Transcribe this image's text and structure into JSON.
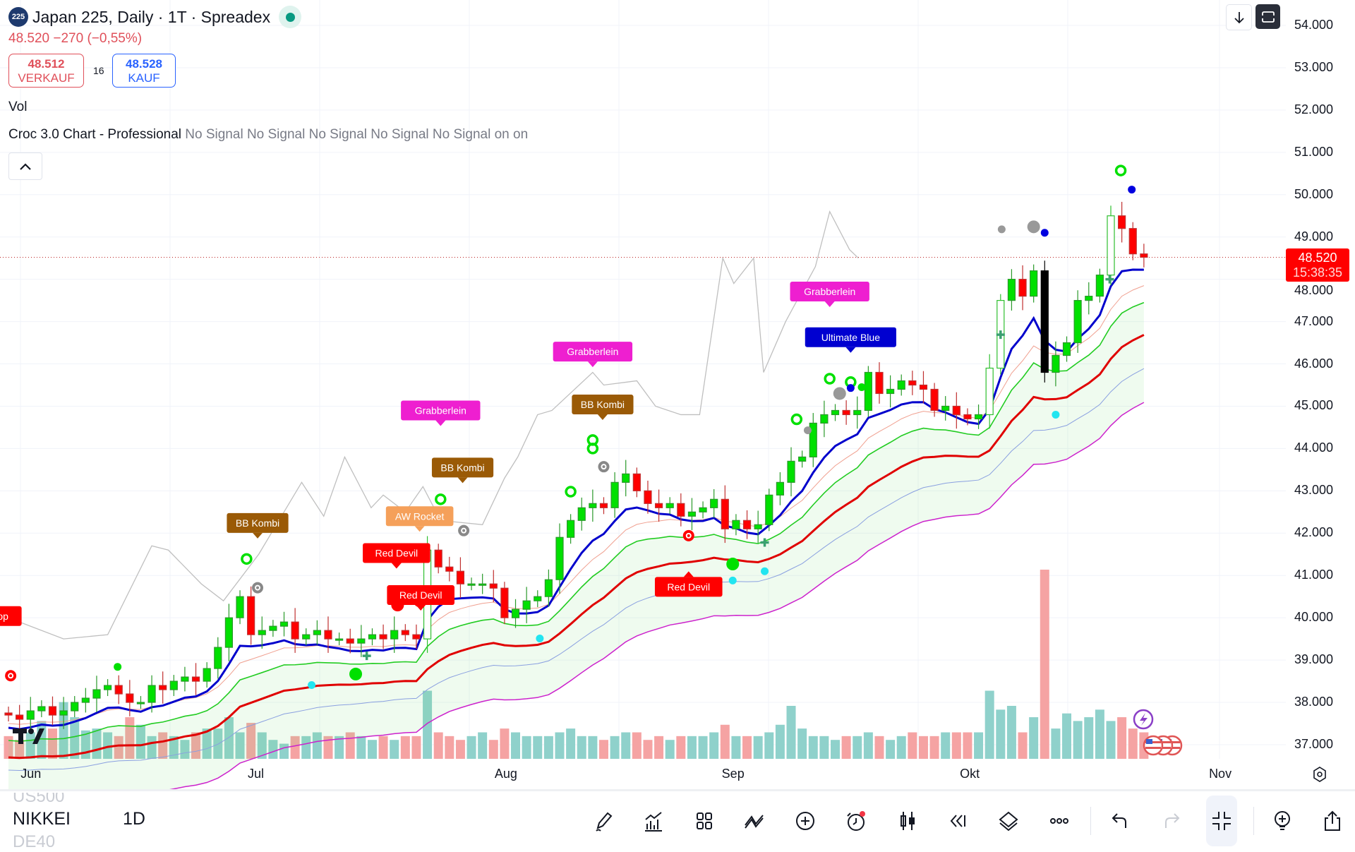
{
  "header": {
    "symbol_badge": "225",
    "title": "Japan 225, Daily · 1T · Spreadex",
    "change": "48.520  −270 (−0,55%)",
    "sell_price": "48.512",
    "sell_label": "VERKAUF",
    "spread": "16",
    "buy_price": "48.528",
    "buy_label": "KAUF",
    "vol_label": "Vol",
    "indicator_name": "Croc 3.0 Chart - Professional",
    "indicator_values": "No Signal No Signal No Signal No Signal No Signal on on"
  },
  "price_tag": {
    "price": "48.520",
    "countdown": "15:38:35"
  },
  "colors": {
    "up": "#00e000",
    "down": "#ff0000",
    "blue_line": "#0000cc",
    "red_line": "#e00000",
    "green_line": "#22cc22",
    "magenta_line": "#cc22cc",
    "vol_up": "#8fd1cb",
    "vol_down": "#f5a3a3",
    "accent": "#2962ff"
  },
  "chart_data": {
    "type": "candlestick",
    "title": "Japan 225, Daily",
    "price_axis": [
      "54.000",
      "53.000",
      "52.000",
      "51.000",
      "50.000",
      "49.000",
      "48.000",
      "47.000",
      "46.000",
      "45.000",
      "44.000",
      "43.000",
      "42.000",
      "41.000",
      "40.000",
      "39.000",
      "38.000",
      "37.000"
    ],
    "ylim": [
      36.7,
      54.2
    ],
    "x_labels": [
      {
        "label": "Jun",
        "i": 2
      },
      {
        "label": "Jul",
        "i": 22.6
      },
      {
        "label": "Aug",
        "i": 45
      },
      {
        "label": "Sep",
        "i": 65.6
      },
      {
        "label": "Okt",
        "i": 87.2
      },
      {
        "label": "Nov",
        "i": 109.8
      }
    ],
    "close": [
      37.7,
      37.6,
      37.8,
      37.9,
      37.7,
      37.8,
      38.0,
      38.1,
      38.3,
      38.4,
      38.2,
      38.0,
      38.0,
      38.4,
      38.3,
      38.5,
      38.6,
      38.5,
      38.8,
      39.3,
      40.0,
      40.5,
      39.6,
      39.7,
      39.8,
      39.9,
      39.5,
      39.6,
      39.7,
      39.5,
      39.5,
      39.4,
      39.5,
      39.6,
      39.5,
      39.7,
      39.6,
      39.5,
      41.6,
      41.2,
      41.1,
      40.8,
      40.8,
      40.8,
      40.7,
      40.0,
      40.2,
      40.4,
      40.5,
      40.9,
      41.9,
      42.3,
      42.6,
      42.7,
      42.6,
      43.2,
      43.4,
      43.0,
      42.7,
      42.6,
      42.7,
      42.4,
      42.5,
      42.6,
      42.8,
      42.1,
      42.3,
      42.1,
      42.2,
      42.9,
      43.2,
      43.7,
      43.8,
      44.6,
      44.8,
      44.9,
      44.8,
      44.9,
      45.8,
      45.3,
      45.4,
      45.6,
      45.5,
      45.4,
      44.9,
      45.0,
      44.8,
      44.7,
      44.8,
      45.9,
      47.5,
      48.0,
      47.6,
      48.2,
      45.8,
      46.2,
      46.5,
      47.5,
      47.6,
      48.1,
      49.5,
      49.2,
      48.6,
      48.52
    ],
    "volume": [
      12,
      10,
      14,
      20,
      16,
      30,
      22,
      15,
      16,
      14,
      12,
      22,
      18,
      12,
      14,
      12,
      10,
      14,
      16,
      16,
      22,
      14,
      19,
      14,
      10,
      8,
      12,
      12,
      14,
      12,
      12,
      14,
      12,
      10,
      12,
      10,
      12,
      12,
      36,
      14,
      12,
      10,
      12,
      14,
      10,
      16,
      14,
      12,
      12,
      12,
      14,
      16,
      12,
      12,
      10,
      12,
      14,
      14,
      10,
      12,
      10,
      12,
      12,
      12,
      14,
      18,
      12,
      12,
      12,
      14,
      18,
      28,
      16,
      12,
      12,
      10,
      12,
      12,
      14,
      12,
      10,
      12,
      14,
      12,
      12,
      14,
      14,
      14,
      14,
      36,
      26,
      28,
      14,
      22,
      100,
      16,
      24,
      20,
      22,
      26,
      20,
      22,
      16,
      14
    ],
    "grey_line": [
      [
        0,
        40.0
      ],
      [
        5,
        39.5
      ],
      [
        9,
        39.6
      ],
      [
        13,
        41.7
      ],
      [
        14.5,
        41.6
      ],
      [
        17.5,
        40.8
      ],
      [
        19.5,
        40.4
      ],
      [
        22.7,
        41.5
      ],
      [
        26.6,
        43.2
      ],
      [
        28.6,
        42.4
      ],
      [
        30.5,
        43.8
      ],
      [
        32.9,
        42.6
      ],
      [
        34,
        42.9
      ],
      [
        36,
        42.5
      ],
      [
        37.6,
        43.1
      ],
      [
        39.2,
        42.3
      ],
      [
        43,
        42.2
      ],
      [
        45,
        43.3
      ],
      [
        46.2,
        43.8
      ],
      [
        48,
        44.8
      ],
      [
        49.3,
        44.9
      ],
      [
        53,
        45.8
      ],
      [
        54,
        45.5
      ],
      [
        57,
        45.6
      ],
      [
        58.7,
        45.0
      ],
      [
        61,
        44.8
      ],
      [
        62.7,
        44.8
      ],
      [
        64.8,
        48.5
      ],
      [
        65.8,
        47.9
      ],
      [
        67.6,
        48.5
      ],
      [
        68.5,
        45.8
      ],
      [
        70.5,
        47.0
      ],
      [
        73.2,
        48.3
      ],
      [
        74.5,
        49.6
      ],
      [
        76.3,
        48.7
      ],
      [
        77.1,
        48.5
      ]
    ],
    "signals": [
      {
        "text": "LolliPop",
        "i": -1.6,
        "p": 40.04,
        "bg": "#ff0000",
        "dir": "down"
      },
      {
        "text": "BB Kombi",
        "i": 22.6,
        "p": 42.24,
        "bg": "#9a5a06",
        "dir": "down"
      },
      {
        "text": "Red Devil",
        "i": 35.2,
        "p": 41.53,
        "bg": "#ff0000",
        "dir": "down"
      },
      {
        "text": "AW Rocket",
        "i": 37.3,
        "p": 42.4,
        "bg": "#f5a05a",
        "dir": "down"
      },
      {
        "text": "Red Devil",
        "i": 37.4,
        "p": 41.67,
        "bg": "#ff0000",
        "dir": "down"
      },
      {
        "text": "Grabberlein",
        "i": 39.2,
        "p": 44.9,
        "bg": "#ee1fd0",
        "dir": "down"
      },
      {
        "text": "BB Kombi",
        "i": 41.2,
        "p": 43.55,
        "bg": "#9a5a06",
        "dir": "down"
      },
      {
        "text": "Grabberlein",
        "i": 53,
        "p": 46.29,
        "bg": "#ee1fd0",
        "dir": "down"
      },
      {
        "text": "BB Kombi",
        "i": 53.9,
        "p": 45.04,
        "bg": "#9a5a06",
        "dir": "down"
      },
      {
        "text": "Red Devil",
        "i": 61.7,
        "p": 40.73,
        "bg": "#ff0000",
        "dir": "up"
      },
      {
        "text": "Grabberlein",
        "i": 74.5,
        "p": 47.71,
        "bg": "#ee1fd0",
        "dir": "down"
      },
      {
        "text": "Ultimate Blue",
        "i": 76.4,
        "p": 46.63,
        "bg": "#0000d0",
        "dir": "down"
      }
    ],
    "markers": [
      {
        "type": "ring-green",
        "i": 21.6,
        "p": 41.39
      },
      {
        "type": "target-grey",
        "i": 22.6,
        "p": 40.71
      },
      {
        "type": "target-red",
        "i": 0.2,
        "p": 38.63
      },
      {
        "type": "dot-green",
        "i": 9.9,
        "p": 38.84
      },
      {
        "type": "dot-red",
        "i": 35.3,
        "p": 40.3,
        "big": true
      },
      {
        "type": "dot-red",
        "i": 37.3,
        "p": 40.4,
        "big": true
      },
      {
        "type": "ring-green",
        "i": 39.2,
        "p": 42.8
      },
      {
        "type": "target-grey",
        "i": 41.3,
        "p": 42.06
      },
      {
        "type": "dot-green",
        "i": 31.5,
        "p": 38.67,
        "big": true
      },
      {
        "type": "dot-cyan",
        "i": 27.5,
        "p": 38.41
      },
      {
        "type": "ring-green",
        "i": 51,
        "p": 42.98
      },
      {
        "type": "ring-green",
        "i": 53,
        "p": 44.2
      },
      {
        "type": "ring-green",
        "i": 53,
        "p": 44.0
      },
      {
        "type": "target-grey",
        "i": 54,
        "p": 43.57
      },
      {
        "type": "dot-cyan",
        "i": 48.2,
        "p": 39.51
      },
      {
        "type": "target-red",
        "i": 61.7,
        "p": 41.94
      },
      {
        "type": "dot-green",
        "i": 65.7,
        "p": 41.27,
        "big": true
      },
      {
        "type": "dot-cyan",
        "i": 65.7,
        "p": 40.88
      },
      {
        "type": "dot-cyan",
        "i": 68.6,
        "p": 41.1
      },
      {
        "type": "ring-green",
        "i": 71.5,
        "p": 44.69
      },
      {
        "type": "dot-grey",
        "i": 72.5,
        "p": 44.43
      },
      {
        "type": "ring-green",
        "i": 74.5,
        "p": 45.65
      },
      {
        "type": "ring-green",
        "i": 76.4,
        "p": 45.57
      },
      {
        "type": "dot-grey",
        "i": 75.4,
        "p": 45.3,
        "big": true
      },
      {
        "type": "dot-blue",
        "i": 76.4,
        "p": 45.43
      },
      {
        "type": "dot-green",
        "i": 77.4,
        "p": 45.45
      },
      {
        "type": "dot-grey",
        "i": 90.1,
        "p": 49.18
      },
      {
        "type": "dot-grey",
        "i": 93,
        "p": 49.24,
        "big": true
      },
      {
        "type": "dot-blue",
        "i": 94,
        "p": 49.1
      },
      {
        "type": "dot-cyan",
        "i": 95,
        "p": 44.8
      },
      {
        "type": "ring-green",
        "i": 100.9,
        "p": 50.57
      },
      {
        "type": "dot-blue",
        "i": 101.9,
        "p": 50.12
      },
      {
        "type": "plus-green",
        "i": 90,
        "p": 46.69
      },
      {
        "type": "plus-green",
        "i": 99.9,
        "p": 48.0
      },
      {
        "type": "plus-green",
        "i": 32.5,
        "p": 39.1
      },
      {
        "type": "plus-green",
        "i": 68.6,
        "p": 41.78
      }
    ]
  },
  "bottom_bar": {
    "prev_symbol": "US500",
    "symbol": "NIKKEI",
    "next_symbol": "DE40",
    "interval": "1D",
    "tools": [
      "pencil-icon",
      "indicators-icon",
      "templates-grid-icon",
      "compare-icon",
      "add-circle-icon",
      "alert-clock-icon",
      "candle-type-icon",
      "replay-icon",
      "layers-icon",
      "more-icon",
      "undo-icon",
      "redo-icon",
      "exit-fullscreen-icon",
      "ideas-icon",
      "share-icon"
    ]
  }
}
